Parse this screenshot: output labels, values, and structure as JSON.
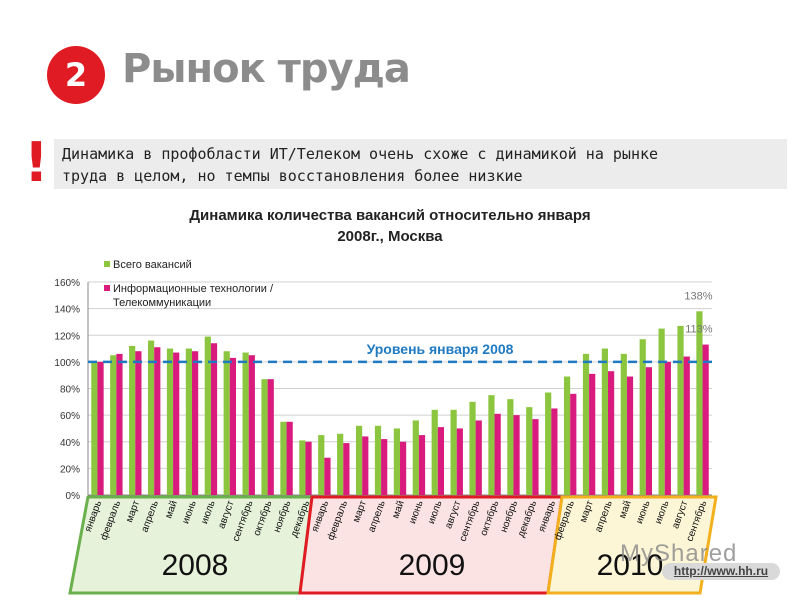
{
  "header": {
    "badge_number": "2",
    "title": "Рынок труда"
  },
  "callout": {
    "mark": "!",
    "text_line1": "Динамика в профобласти ИТ/Телеком очень схоже с динамикой на рынке",
    "text_line2": "труда в целом, но темпы восстановления более низкие"
  },
  "chart_data": {
    "type": "bar",
    "title": "Динамика количества вакансий относительно января 2008г., Москва",
    "title_line1": "Динамика количества вакансий относительно января",
    "title_line2": "2008г., Москва",
    "xlabel": "",
    "ylabel": "",
    "ylim": [
      0,
      160
    ],
    "y_ticks": [
      "0%",
      "20%",
      "40%",
      "60%",
      "80%",
      "100%",
      "120%",
      "140%",
      "160%"
    ],
    "grid": true,
    "legend_position": "top-left",
    "categories": [
      "январь",
      "февраль",
      "март",
      "апрель",
      "май",
      "июнь",
      "июль",
      "август",
      "сентябрь",
      "октябрь",
      "ноябрь",
      "декабрь",
      "январь",
      "февраль",
      "март",
      "апрель",
      "май",
      "июнь",
      "июль",
      "август",
      "сентябрь",
      "октябрь",
      "ноябрь",
      "декабрь",
      "январь",
      "февраль",
      "март",
      "апрель",
      "май",
      "июнь",
      "июль",
      "август",
      "сентябрь"
    ],
    "series": [
      {
        "name": "Всего вакансий",
        "color": "#8cc63f",
        "values": [
          100,
          105,
          112,
          116,
          110,
          110,
          119,
          108,
          107,
          87,
          55,
          41,
          45,
          46,
          52,
          52,
          50,
          56,
          64,
          64,
          70,
          75,
          72,
          66,
          77,
          89,
          106,
          110,
          106,
          117,
          125,
          127,
          138
        ]
      },
      {
        "name": "Информационные технологии / Телекоммуникации",
        "name_line1": "Информационные технологии /",
        "name_line2": "Телекоммуникации",
        "color": "#d81b7d",
        "values": [
          100,
          106,
          108,
          111,
          107,
          108,
          114,
          103,
          105,
          87,
          55,
          40,
          28,
          39,
          44,
          42,
          40,
          45,
          51,
          50,
          56,
          61,
          60,
          57,
          65,
          76,
          91,
          93,
          89,
          96,
          100,
          104,
          113
        ]
      }
    ],
    "annotations": {
      "reference_line": {
        "value": 100,
        "label": "Уровень января 2008",
        "color": "#1f7ac2"
      },
      "end_labels": [
        "138%",
        "113%"
      ]
    },
    "year_groups": [
      {
        "label": "2008",
        "border": "#6ab04c",
        "fill": "#e6f2d9"
      },
      {
        "label": "2009",
        "border": "#e01b24",
        "fill": "#fbe3e3"
      },
      {
        "label": "2010",
        "border": "#f2b01e",
        "fill": "#fdf6d6"
      }
    ]
  },
  "watermark": "MyShared",
  "source_url": "http://www.hh.ru"
}
